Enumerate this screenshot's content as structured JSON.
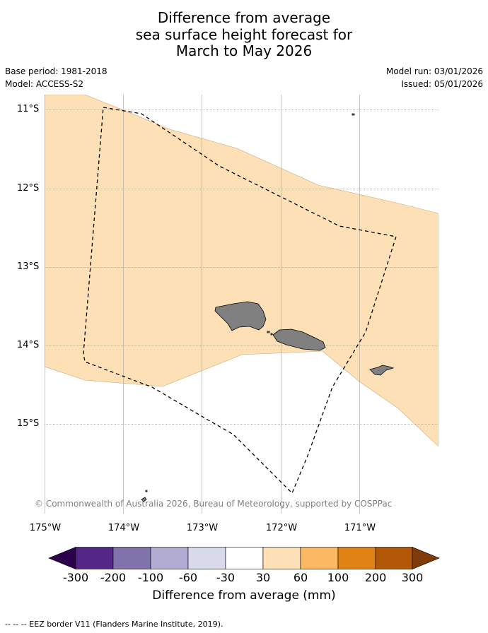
{
  "title": {
    "line1": "Difference from average",
    "line2": "sea surface height forecast for",
    "line3": "March to May 2026"
  },
  "meta": {
    "base_period": "Base period: 1981-2018",
    "model": "Model: ACCESS-S2",
    "model_run": "Model run: 03/01/2026",
    "issued": "Issued: 05/01/2026"
  },
  "map": {
    "lat_labels": [
      "11°S",
      "12°S",
      "13°S",
      "14°S",
      "15°S"
    ],
    "lon_labels": [
      "175°W",
      "174°W",
      "173°W",
      "172°W",
      "171°W"
    ],
    "copyright": "© Commonwealth of Australia 2026, Bureau of Meteorology, supported by COSPPac",
    "land_color": "#808080",
    "anomaly_fill_color": "#fee0b6"
  },
  "colorbar": {
    "ticks": [
      "-300",
      "-200",
      "-100",
      "-60",
      "-30",
      "30",
      "60",
      "100",
      "200",
      "300"
    ],
    "colors": [
      "#2d004b",
      "#542788",
      "#8073ac",
      "#b2abd2",
      "#d8daeb",
      "#ffffff",
      "#fee0b6",
      "#fdb863",
      "#e08214",
      "#b35806",
      "#7f3b08"
    ],
    "label": "Difference from average (mm)"
  },
  "footer": {
    "eez_legend": "--  --  -- EEZ border V11 (Flanders Marine Institute, 2019)."
  }
}
